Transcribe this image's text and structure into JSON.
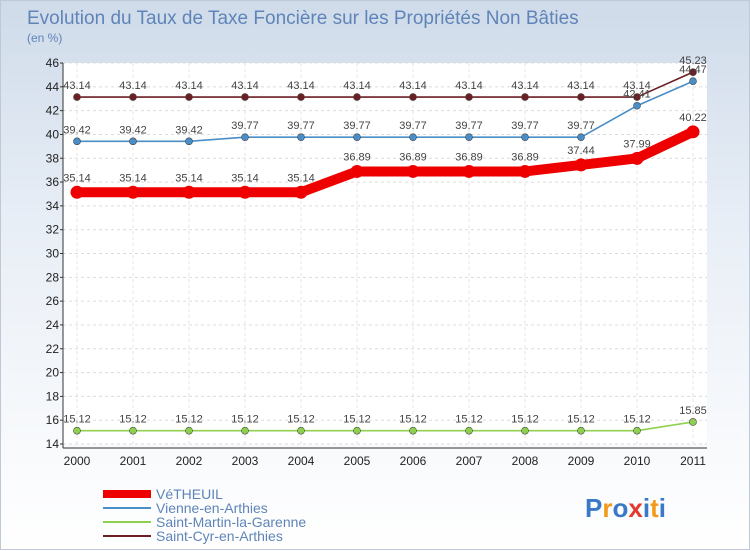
{
  "chart_data": {
    "type": "line",
    "title": "Evolution du Taux de Taxe Foncière sur les Propriétés Non Bâties",
    "subtitle": "(en %)",
    "categories": [
      "2000",
      "2001",
      "2002",
      "2003",
      "2004",
      "2005",
      "2006",
      "2007",
      "2008",
      "2009",
      "2010",
      "2011"
    ],
    "ylim": [
      14,
      46
    ],
    "yticks": [
      14,
      16,
      18,
      20,
      22,
      24,
      26,
      28,
      30,
      32,
      34,
      36,
      38,
      40,
      42,
      44,
      46
    ],
    "grid": true,
    "legend_position": "bottom-left",
    "series": [
      {
        "name": "Saint-Cyr-en-Arthies",
        "color": "#6b1f24",
        "values": [
          43.14,
          43.14,
          43.14,
          43.14,
          43.14,
          43.14,
          43.14,
          43.14,
          43.14,
          43.14,
          43.14,
          45.23
        ],
        "labels": [
          "43.14",
          "43.14",
          "43.14",
          "43.14",
          "43.14",
          "43.14",
          "43.14",
          "43.14",
          "43.14",
          "43.14",
          "43.14",
          "45.23"
        ]
      },
      {
        "name": "Vienne-en-Arthies",
        "color": "#4a8ec8",
        "values": [
          39.42,
          39.42,
          39.42,
          39.77,
          39.77,
          39.77,
          39.77,
          39.77,
          39.77,
          39.77,
          42.41,
          44.47
        ],
        "labels": [
          "39.42",
          "39.42",
          "39.42",
          "39.77",
          "39.77",
          "39.77",
          "39.77",
          "39.77",
          "39.77",
          "39.77",
          "42.41",
          "44.47"
        ]
      },
      {
        "name": "VéTHEUIL",
        "color": "#ee0000",
        "values": [
          35.14,
          35.14,
          35.14,
          35.14,
          35.14,
          36.89,
          36.89,
          36.89,
          36.89,
          37.44,
          37.99,
          40.22
        ],
        "labels": [
          "35.14",
          "35.14",
          "35.14",
          "35.14",
          "35.14",
          "36.89",
          "36.89",
          "36.89",
          "36.89",
          "37.44",
          "37.99",
          "40.22"
        ]
      },
      {
        "name": "Saint-Martin-la-Garenne",
        "color": "#8fd14f",
        "values": [
          15.12,
          15.12,
          15.12,
          15.12,
          15.12,
          15.12,
          15.12,
          15.12,
          15.12,
          15.12,
          15.12,
          15.85
        ],
        "labels": [
          "15.12",
          "15.12",
          "15.12",
          "15.12",
          "15.12",
          "15.12",
          "15.12",
          "15.12",
          "15.12",
          "15.12",
          "15.12",
          "15.85"
        ]
      }
    ],
    "legend": [
      "VéTHEUIL",
      "Vienne-en-Arthies",
      "Saint-Martin-la-Garenne",
      "Saint-Cyr-en-Arthies"
    ]
  },
  "brand": {
    "text": "Proxiti",
    "letters": [
      "P",
      "r",
      "o",
      "x",
      "i",
      "t",
      "i"
    ],
    "colors": [
      "#3a78c8",
      "#f29a1b",
      "#3a78c8",
      "#e23b2e",
      "#3a78c8",
      "#f29a1b",
      "#3a78c8"
    ]
  }
}
